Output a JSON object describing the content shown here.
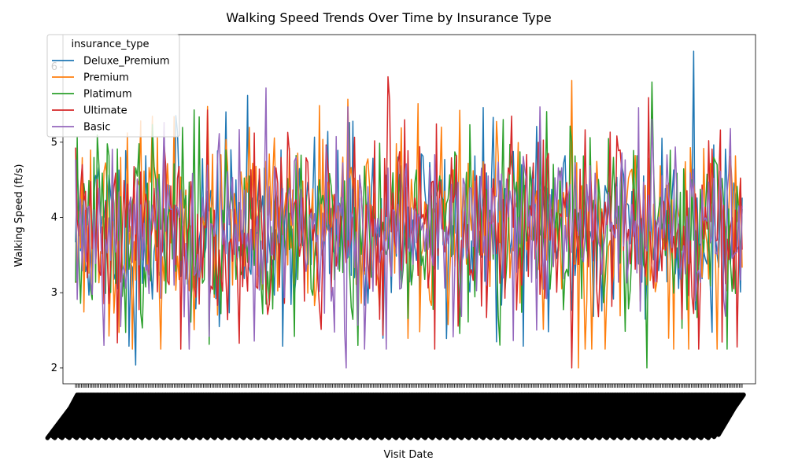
{
  "chart_data": {
    "type": "line",
    "title": "Walking Speed Trends Over Time by Insurance Type",
    "xlabel": "Visit Date",
    "ylabel": "Walking Speed (ft/s)",
    "ylim": [
      1.79,
      6.43
    ],
    "yticks": [
      2,
      3,
      4,
      5,
      6
    ],
    "x_tick_labels_legible": false,
    "grid": false,
    "legend": {
      "title": "insurance_type",
      "placement": "top-left"
    },
    "series": [
      {
        "name": "Deluxe_Premium",
        "color": "#1f77b4",
        "seed": 11,
        "spikes": {
          "max": 6.21,
          "min": 2.04
        }
      },
      {
        "name": "Premium",
        "color": "#ff7f0e",
        "seed": 23,
        "spikes": {
          "max": 5.82,
          "min": 2.0
        }
      },
      {
        "name": "Platimum",
        "color": "#2ca02c",
        "seed": 37,
        "spikes": {
          "max": 5.8,
          "min": 2.0
        }
      },
      {
        "name": "Ultimate",
        "color": "#d62728",
        "seed": 41,
        "spikes": {
          "max": 5.87,
          "min": 2.0
        }
      },
      {
        "name": "Basic",
        "color": "#9467bd",
        "seed": 53,
        "spikes": {
          "max": 5.72,
          "min": 2.0
        }
      }
    ],
    "points_per_series": 400,
    "value_distribution": {
      "mean": 3.85,
      "sd": 0.65
    }
  }
}
